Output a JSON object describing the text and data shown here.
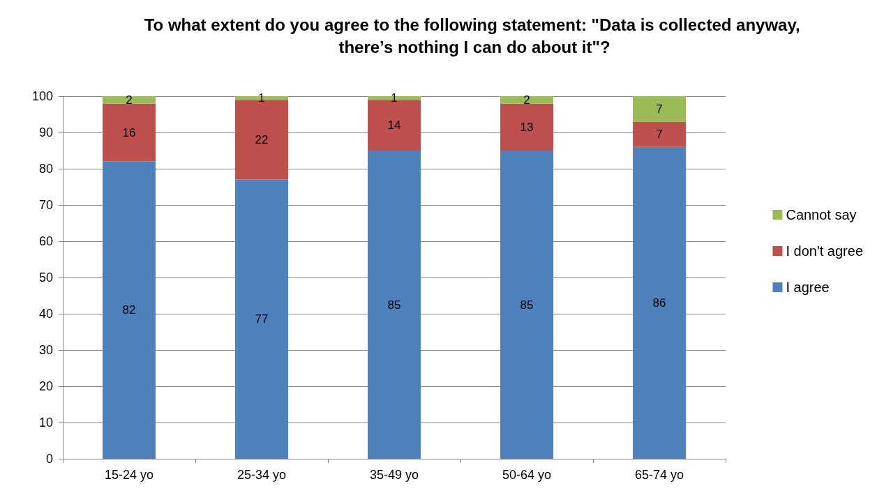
{
  "chart_data": {
    "type": "bar",
    "title": "To what extent do you agree to the following statement: \"Data is collected anyway, there’s nothing I can do about it\"?",
    "categories": [
      "15-24 yo",
      "25-34 yo",
      "35-49 yo",
      "50-64 yo",
      "65-74 yo"
    ],
    "series": [
      {
        "name": "I agree",
        "color": "#4f81bd",
        "values": [
          82,
          77,
          85,
          85,
          86
        ]
      },
      {
        "name": "I don't agree",
        "color": "#c0504d",
        "values": [
          16,
          22,
          14,
          13,
          7
        ]
      },
      {
        "name": "Cannot say",
        "color": "#9bbb59",
        "values": [
          2,
          1,
          1,
          2,
          7
        ]
      }
    ],
    "stacked": true,
    "data_labels": true,
    "ylim": [
      0,
      100
    ],
    "yticks": [
      0,
      10,
      20,
      30,
      40,
      50,
      60,
      70,
      80,
      90,
      100
    ],
    "grid": "y",
    "legend": "right"
  }
}
